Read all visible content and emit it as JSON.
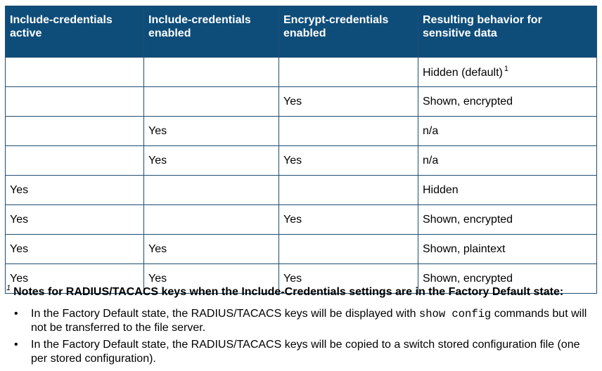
{
  "table": {
    "headers": [
      "Include-credentials active",
      "Include-credentials enabled",
      "Encrypt-credentials enabled",
      "Resulting behavior for sensitive data"
    ],
    "rows": [
      [
        "",
        "",
        "",
        "Hidden (default)"
      ],
      [
        "",
        "",
        "Yes",
        "Shown, encrypted"
      ],
      [
        "",
        "Yes",
        "",
        "n/a"
      ],
      [
        "",
        "Yes",
        "Yes",
        "n/a"
      ],
      [
        "Yes",
        "",
        "",
        "Hidden"
      ],
      [
        "Yes",
        "",
        "Yes",
        "Shown, encrypted"
      ],
      [
        "Yes",
        "Yes",
        "",
        "Shown, plaintext"
      ],
      [
        "Yes",
        "Yes",
        "Yes",
        "Shown, encrypted"
      ]
    ],
    "footnote_marker": "1"
  },
  "notes": {
    "marker": "1",
    "title": "Notes for RADIUS/TACACS keys when the Include-Credentials settings are in the Factory Default state:",
    "bullet": "•",
    "item1_pre": "In the Factory Default state, the RADIUS/TACACS keys will be displayed with ",
    "item1_code": "show config",
    "item1_post": " commands but will not be transferred to the file server.",
    "item2": "In the Factory Default state, the RADIUS/TACACS keys will be copied to a switch stored configuration file (one per stored configuration)."
  }
}
